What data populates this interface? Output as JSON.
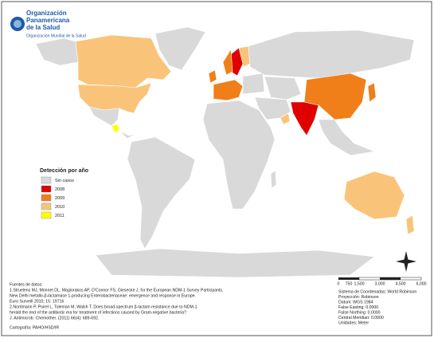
{
  "logo": {
    "lines": [
      "Organización",
      "Panamericana",
      "de la Salud"
    ],
    "subtitle": "Organización Mundial de la Salud"
  },
  "legend": {
    "title": "Detección por año",
    "items": [
      {
        "label": "Sin casos",
        "color": "#d9d9d9"
      },
      {
        "label": "2008",
        "color": "#e00000"
      },
      {
        "label": "2009",
        "color": "#f07f1a"
      },
      {
        "label": "2010",
        "color": "#f9c47a"
      },
      {
        "label": "2011",
        "color": "#ffff00"
      }
    ]
  },
  "scale": {
    "labels": [
      "0",
      "750",
      "1,500",
      "3,000",
      "4,500",
      "6,000"
    ]
  },
  "sources": [
    "Fuentes de datos:",
    "1.Struelens MJ, Monnet DL, Magiorakos AP, O'Connor FS, Giesecke J, for the European NDM-1 Survey Participants.",
    "New Delhi metallo-β-lactamase 1-producing Enterobacteriaceae: emergence and response in Europe.",
    "Euro Surveill 2010; 15: 19716",
    "2.Nordmann P, Poirel L, Toleman M, Walsh T. Does broad-spectrum β-lactam resistance due to NDM-1",
    "herald the end of the antibiotic era for treatment of infections caused by Gram-negative bacteria?",
    "J. Antimicrob. Chemother. (2011) 66(4): 689-692."
  ],
  "cartography": "Cartografía: PAHO/HSD/IR",
  "projection": [
    "Sistema de Coordenadas: World Robinson",
    "Proyección: Robinson",
    "Datum: WGS 1984",
    "False Easting: 0.0000",
    "False Northing: 0.0000",
    "Central Meridian: 0.0000",
    "Unidades: Meter"
  ]
}
